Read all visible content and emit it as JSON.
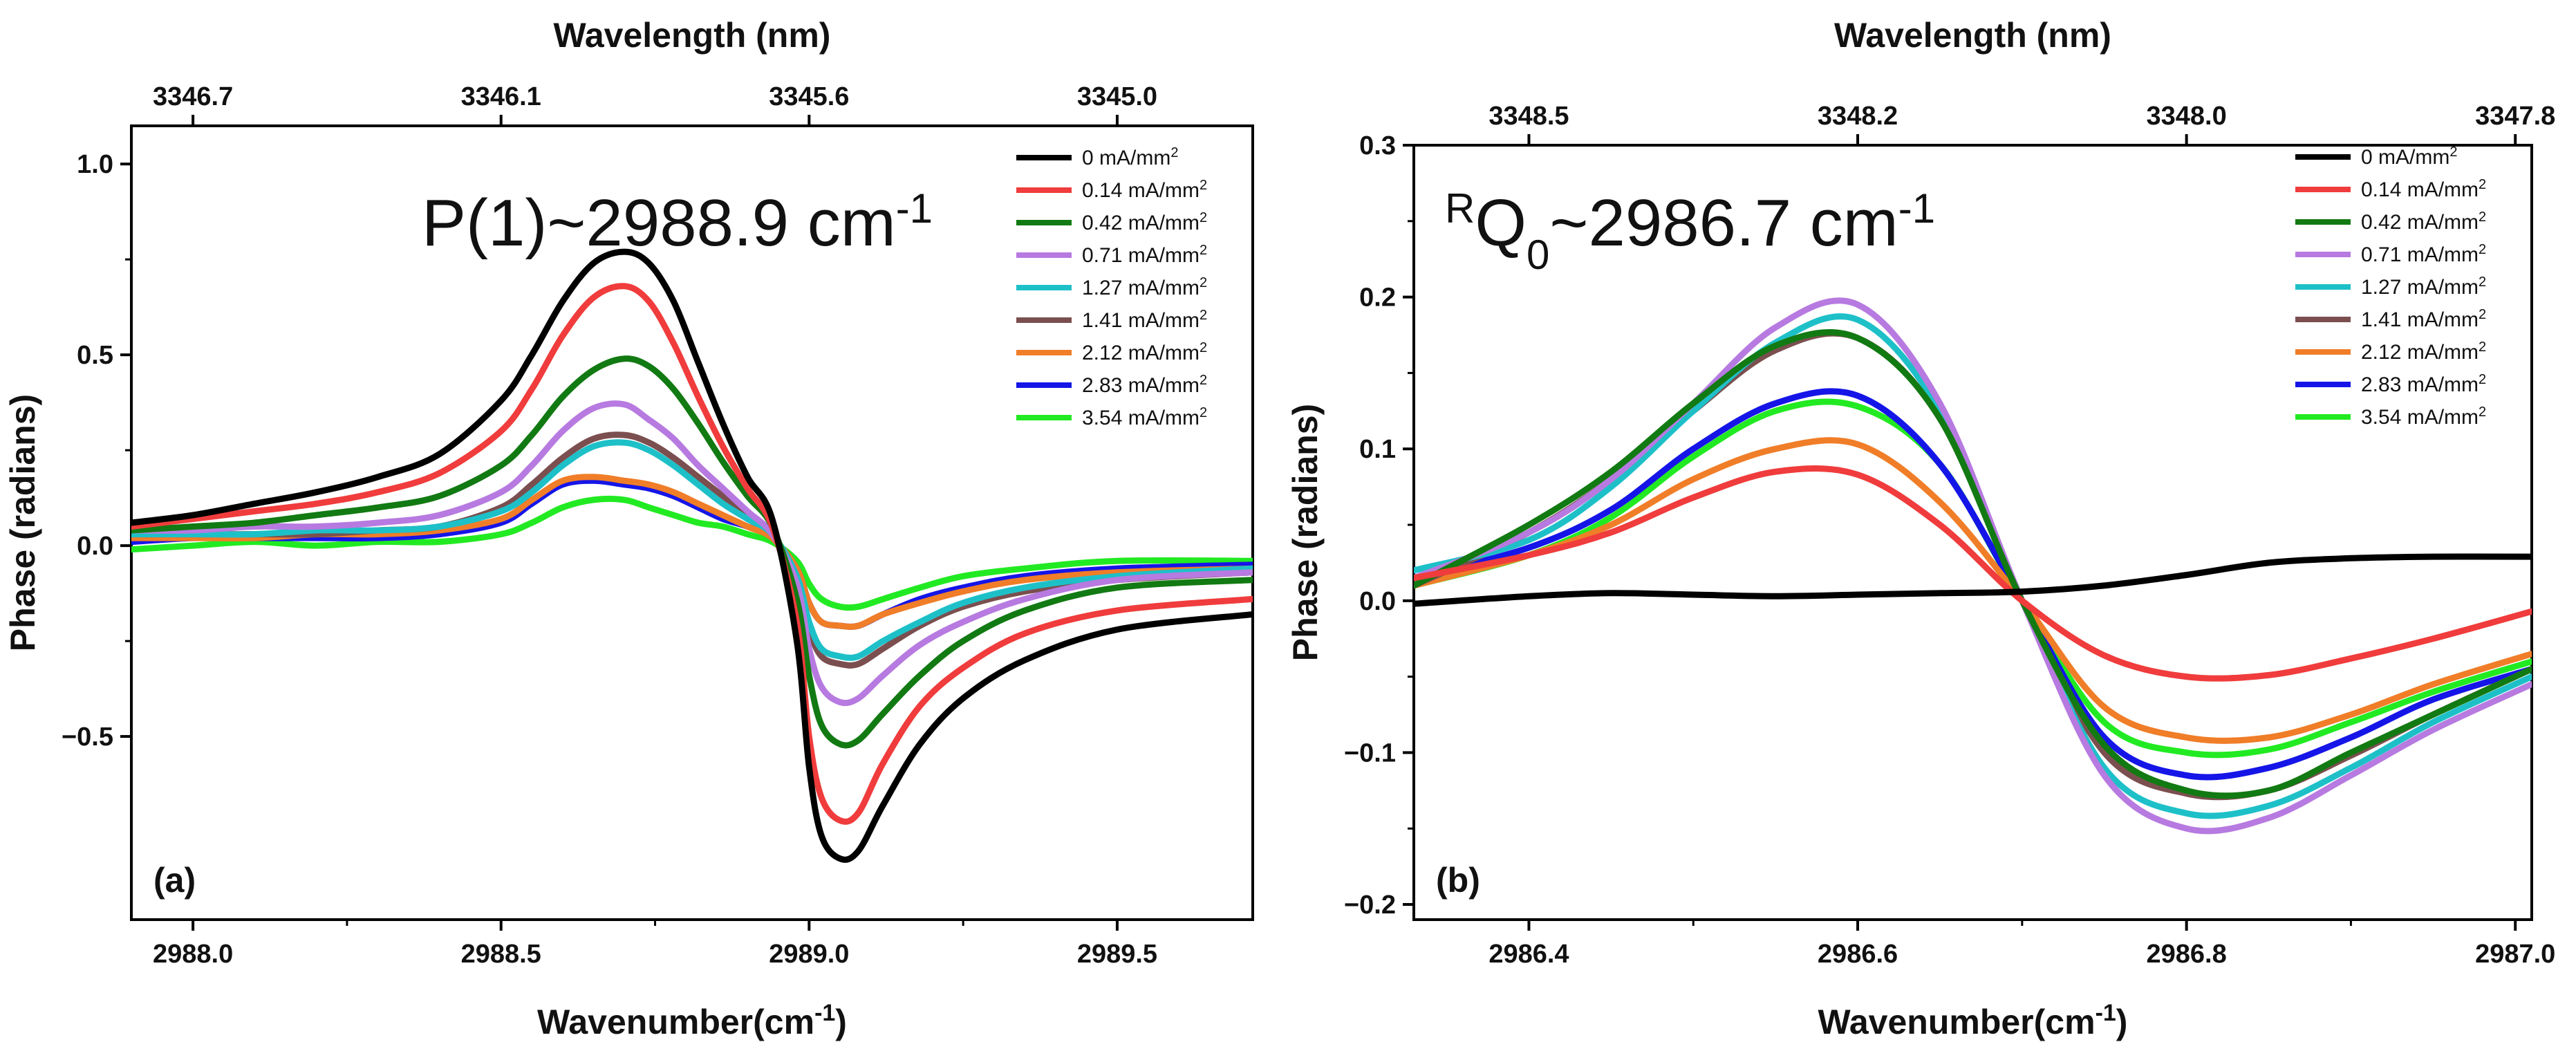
{
  "chart_data": [
    {
      "type": "line",
      "panel_label": "(a)",
      "annotation": {
        "main": "P(1)~2988.9 cm",
        "sup": "-1"
      },
      "xlabel": {
        "main": "Wavenumber(cm",
        "sup": "-1",
        "end": ")"
      },
      "ylabel": "Phase (radians)",
      "top_xlabel": "Wavelength (nm)",
      "xlim": [
        2987.9,
        2989.72
      ],
      "ylim": [
        -0.98,
        1.1
      ],
      "x_ticks": [
        "2988.0",
        "2988.5",
        "2989.0",
        "2989.5"
      ],
      "x_tick_values": [
        2988.0,
        2988.5,
        2989.0,
        2989.5
      ],
      "y_ticks": [
        "−0.5",
        "0.0",
        "0.5",
        "1.0"
      ],
      "y_tick_values": [
        -0.5,
        0.0,
        0.5,
        1.0
      ],
      "top_ticks": [
        "3346.7",
        "3346.1",
        "3345.6",
        "3345.0"
      ],
      "top_tick_positions_x": [
        2988.0,
        2988.5,
        2989.0,
        2989.5
      ],
      "x": [
        2987.9,
        2988.0,
        2988.1,
        2988.2,
        2988.3,
        2988.4,
        2988.5,
        2988.55,
        2988.6,
        2988.65,
        2988.7,
        2988.74,
        2988.78,
        2988.82,
        2988.86,
        2988.9,
        2988.94,
        2988.98,
        2989.0,
        2989.02,
        2989.05,
        2989.08,
        2989.12,
        2989.18,
        2989.25,
        2989.35,
        2989.5,
        2989.72
      ],
      "series": [
        {
          "name": "0 mA/mm",
          "color": "#000000",
          "values": [
            0.06,
            0.08,
            0.11,
            0.14,
            0.18,
            0.24,
            0.38,
            0.5,
            0.64,
            0.74,
            0.77,
            0.74,
            0.64,
            0.48,
            0.32,
            0.18,
            0.07,
            -0.25,
            -0.58,
            -0.76,
            -0.82,
            -0.8,
            -0.68,
            -0.52,
            -0.4,
            -0.3,
            -0.22,
            -0.18
          ]
        },
        {
          "name": "0.14 mA/mm",
          "color": "#f03c3c",
          "values": [
            0.05,
            0.07,
            0.09,
            0.11,
            0.14,
            0.19,
            0.3,
            0.41,
            0.55,
            0.65,
            0.68,
            0.64,
            0.53,
            0.39,
            0.26,
            0.15,
            0.05,
            -0.2,
            -0.5,
            -0.66,
            -0.72,
            -0.7,
            -0.57,
            -0.42,
            -0.32,
            -0.23,
            -0.17,
            -0.14
          ]
        },
        {
          "name": "0.42 mA/mm",
          "color": "#127a12",
          "values": [
            0.04,
            0.05,
            0.06,
            0.08,
            0.1,
            0.13,
            0.21,
            0.29,
            0.39,
            0.46,
            0.49,
            0.47,
            0.41,
            0.32,
            0.22,
            0.13,
            0.05,
            -0.14,
            -0.34,
            -0.47,
            -0.52,
            -0.51,
            -0.44,
            -0.34,
            -0.25,
            -0.17,
            -0.11,
            -0.09
          ]
        },
        {
          "name": "0.71 mA/mm",
          "color": "#b77ae0",
          "values": [
            0.04,
            0.04,
            0.05,
            0.05,
            0.06,
            0.08,
            0.14,
            0.21,
            0.3,
            0.36,
            0.37,
            0.33,
            0.28,
            0.21,
            0.15,
            0.09,
            0.03,
            -0.1,
            -0.27,
            -0.37,
            -0.41,
            -0.4,
            -0.34,
            -0.26,
            -0.2,
            -0.14,
            -0.09,
            -0.07
          ]
        },
        {
          "name": "1.27 mA/mm",
          "color": "#1ec0c8",
          "values": [
            0.03,
            0.03,
            0.03,
            0.04,
            0.04,
            0.05,
            0.09,
            0.14,
            0.21,
            0.26,
            0.27,
            0.25,
            0.21,
            0.16,
            0.11,
            0.07,
            0.03,
            -0.08,
            -0.2,
            -0.27,
            -0.29,
            -0.29,
            -0.25,
            -0.2,
            -0.15,
            -0.11,
            -0.08,
            -0.06
          ]
        },
        {
          "name": "1.41 mA/mm",
          "color": "#7b4f4f",
          "values": [
            0.03,
            0.03,
            0.03,
            0.03,
            0.04,
            0.05,
            0.1,
            0.16,
            0.23,
            0.28,
            0.29,
            0.27,
            0.23,
            0.18,
            0.13,
            0.08,
            0.03,
            -0.09,
            -0.22,
            -0.29,
            -0.31,
            -0.31,
            -0.27,
            -0.21,
            -0.16,
            -0.12,
            -0.09,
            -0.07
          ]
        },
        {
          "name": "2.12 mA/mm",
          "color": "#f07d28",
          "values": [
            0.02,
            0.02,
            0.02,
            0.03,
            0.03,
            0.04,
            0.07,
            0.12,
            0.17,
            0.18,
            0.17,
            0.16,
            0.14,
            0.11,
            0.08,
            0.05,
            0.02,
            -0.06,
            -0.15,
            -0.2,
            -0.21,
            -0.21,
            -0.18,
            -0.15,
            -0.12,
            -0.09,
            -0.07,
            -0.06
          ]
        },
        {
          "name": "2.83 mA/mm",
          "color": "#1515e8",
          "values": [
            0.01,
            0.02,
            0.02,
            0.02,
            0.02,
            0.03,
            0.06,
            0.11,
            0.16,
            0.17,
            0.16,
            0.15,
            0.13,
            0.1,
            0.07,
            0.05,
            0.02,
            -0.06,
            -0.15,
            -0.2,
            -0.21,
            -0.21,
            -0.18,
            -0.14,
            -0.11,
            -0.08,
            -0.06,
            -0.05
          ]
        },
        {
          "name": "3.54 mA/mm",
          "color": "#22ea22",
          "values": [
            -0.01,
            0.0,
            0.01,
            0.0,
            0.01,
            0.01,
            0.03,
            0.06,
            0.1,
            0.12,
            0.12,
            0.1,
            0.08,
            0.06,
            0.05,
            0.03,
            0.01,
            -0.04,
            -0.1,
            -0.14,
            -0.16,
            -0.16,
            -0.14,
            -0.11,
            -0.08,
            -0.06,
            -0.04,
            -0.04
          ]
        }
      ]
    },
    {
      "type": "line",
      "panel_label": "(b)",
      "annotation": {
        "sup_pre": "R",
        "main": "Q",
        "sub": "0",
        "rest": "~2986.7 cm",
        "sup": "-1"
      },
      "xlabel": {
        "main": "Wavenumber(cm",
        "sup": "-1",
        "end": ")"
      },
      "ylabel": "Phase (radians)",
      "top_xlabel": "Wavelength (nm)",
      "xlim": [
        2986.33,
        2987.01
      ],
      "ylim": [
        -0.21,
        0.3
      ],
      "x_ticks": [
        "2986.4",
        "2986.6",
        "2986.8",
        "2987.0"
      ],
      "x_tick_values": [
        2986.4,
        2986.6,
        2986.8,
        2987.0
      ],
      "y_ticks": [
        "−0.2",
        "−0.1",
        "0.0",
        "0.1",
        "0.2",
        "0.3"
      ],
      "y_tick_values": [
        -0.2,
        -0.1,
        0.0,
        0.1,
        0.2,
        0.3
      ],
      "top_ticks": [
        "3348.5",
        "3348.2",
        "3348.0",
        "3347.8"
      ],
      "top_tick_positions_x": [
        2986.4,
        2986.6,
        2986.8,
        2987.0
      ],
      "x": [
        2986.33,
        2986.4,
        2986.45,
        2986.5,
        2986.55,
        2986.6,
        2986.65,
        2986.7,
        2986.75,
        2986.8,
        2986.85,
        2986.9,
        2986.95,
        2987.01
      ],
      "series": [
        {
          "name": "0 mA/mm",
          "color": "#000000",
          "values": [
            -0.002,
            0.003,
            0.005,
            0.004,
            0.003,
            0.004,
            0.005,
            0.006,
            0.01,
            0.017,
            0.025,
            0.028,
            0.029,
            0.029
          ]
        },
        {
          "name": "0.14 mA/mm",
          "color": "#f03c3c",
          "values": [
            0.015,
            0.03,
            0.045,
            0.068,
            0.085,
            0.083,
            0.05,
            0.0,
            -0.036,
            -0.05,
            -0.049,
            -0.038,
            -0.025,
            -0.007
          ]
        },
        {
          "name": "0.42 mA/mm",
          "color": "#127a12",
          "values": [
            0.01,
            0.05,
            0.085,
            0.13,
            0.168,
            0.173,
            0.12,
            0.0,
            -0.095,
            -0.125,
            -0.125,
            -0.1,
            -0.075,
            -0.045
          ]
        },
        {
          "name": "0.71 mA/mm",
          "color": "#b77ae0",
          "values": [
            0.015,
            0.045,
            0.08,
            0.13,
            0.18,
            0.195,
            0.13,
            0.0,
            -0.115,
            -0.15,
            -0.143,
            -0.115,
            -0.085,
            -0.055
          ]
        },
        {
          "name": "1.27 mA/mm",
          "color": "#1ec0c8",
          "values": [
            0.02,
            0.04,
            0.075,
            0.125,
            0.17,
            0.185,
            0.125,
            0.0,
            -0.11,
            -0.14,
            -0.135,
            -0.11,
            -0.08,
            -0.05
          ]
        },
        {
          "name": "1.41 mA/mm",
          "color": "#7b4f4f",
          "values": [
            0.01,
            0.045,
            0.08,
            0.125,
            0.165,
            0.173,
            0.12,
            0.0,
            -0.1,
            -0.127,
            -0.125,
            -0.102,
            -0.075,
            -0.045
          ]
        },
        {
          "name": "2.12 mA/mm",
          "color": "#f07d28",
          "values": [
            0.01,
            0.03,
            0.05,
            0.08,
            0.1,
            0.103,
            0.065,
            0.0,
            -0.07,
            -0.09,
            -0.09,
            -0.075,
            -0.055,
            -0.035
          ]
        },
        {
          "name": "2.83 mA/mm",
          "color": "#1515e8",
          "values": [
            0.015,
            0.035,
            0.06,
            0.1,
            0.13,
            0.135,
            0.09,
            0.0,
            -0.09,
            -0.115,
            -0.11,
            -0.09,
            -0.065,
            -0.045
          ]
        },
        {
          "name": "3.54 mA/mm",
          "color": "#22ea22",
          "values": [
            0.01,
            0.03,
            0.055,
            0.095,
            0.125,
            0.128,
            0.09,
            0.0,
            -0.08,
            -0.1,
            -0.098,
            -0.08,
            -0.06,
            -0.04
          ]
        }
      ]
    }
  ]
}
